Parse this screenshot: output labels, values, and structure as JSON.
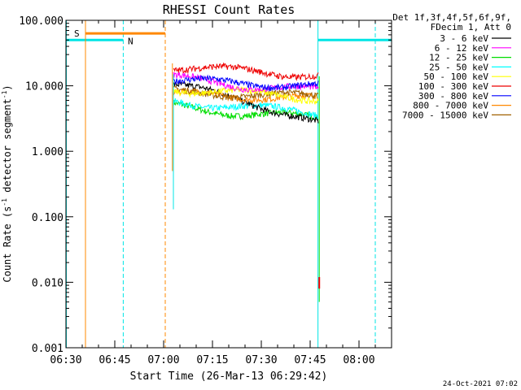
{
  "chart_data": {
    "type": "line",
    "title": "RHESSI Count Rates",
    "xlabel": "Start Time (26-Mar-13 06:29:42)",
    "ylabel_parts": [
      "Count Rate (s",
      "-1",
      " detector segment",
      "-1",
      ")"
    ],
    "yscale": "log",
    "ylim": [
      0.001,
      100
    ],
    "xlim_minutes": [
      0,
      100
    ],
    "y_ticks": [
      {
        "value": 0.001,
        "label": "0.001"
      },
      {
        "value": 0.01,
        "label": "0.010"
      },
      {
        "value": 0.1,
        "label": "0.100"
      },
      {
        "value": 1,
        "label": "1.000"
      },
      {
        "value": 10,
        "label": "10.000"
      },
      {
        "value": 100,
        "label": "100.000"
      }
    ],
    "x_ticks": [
      {
        "minute": 0,
        "label": "06:30"
      },
      {
        "minute": 15,
        "label": "06:45"
      },
      {
        "minute": 30,
        "label": "07:00"
      },
      {
        "minute": 45,
        "label": "07:15"
      },
      {
        "minute": 60,
        "label": "07:30"
      },
      {
        "minute": 75,
        "label": "07:45"
      },
      {
        "minute": 90,
        "label": "08:00"
      }
    ],
    "legend_header": [
      "Det 1f,3f,4f,5f,6f,9f,",
      "FDecim 1, Att 0"
    ],
    "series": [
      {
        "name": "3 - 6 keV",
        "color": "#000000",
        "start": 10.5,
        "mid": 6.0,
        "end": 2.6
      },
      {
        "name": "6 - 12 keV",
        "color": "#ff00ff",
        "start": 13.5,
        "mid": 10.0,
        "end": 8.5
      },
      {
        "name": "12 - 25 keV",
        "color": "#00dd00",
        "start": 5.0,
        "mid": 3.7,
        "end": 3.3
      },
      {
        "name": "25 - 50 keV",
        "color": "#00ffff",
        "start": 5.8,
        "mid": 4.7,
        "end": 3.9
      },
      {
        "name": "50 - 100 keV",
        "color": "#ffff00",
        "start": 9.0,
        "mid": 7.7,
        "end": 6.5
      },
      {
        "name": "100 - 300 keV",
        "color": "#ee0000",
        "start": 19.5,
        "mid": 17.0,
        "end": 14.5
      },
      {
        "name": "300 - 800 keV",
        "color": "#0000ff",
        "start": 12.0,
        "mid": 11.0,
        "end": 10.0
      },
      {
        "name": "800 - 7000 keV",
        "color": "#ff8800",
        "start": 7.5,
        "mid": 7.0,
        "end": 6.3
      },
      {
        "name": "7000 - 15000 keV",
        "color": "#a06000",
        "start": 8.0,
        "mid": 7.5,
        "end": 6.8
      }
    ],
    "data_window_minutes": [
      33,
      77.5
    ],
    "annotations": [
      {
        "text": "S",
        "color": "#ff8800"
      },
      {
        "text": "N",
        "color": "#00e5e5"
      }
    ],
    "timestamp": "24-Oct-2021 07:02"
  }
}
